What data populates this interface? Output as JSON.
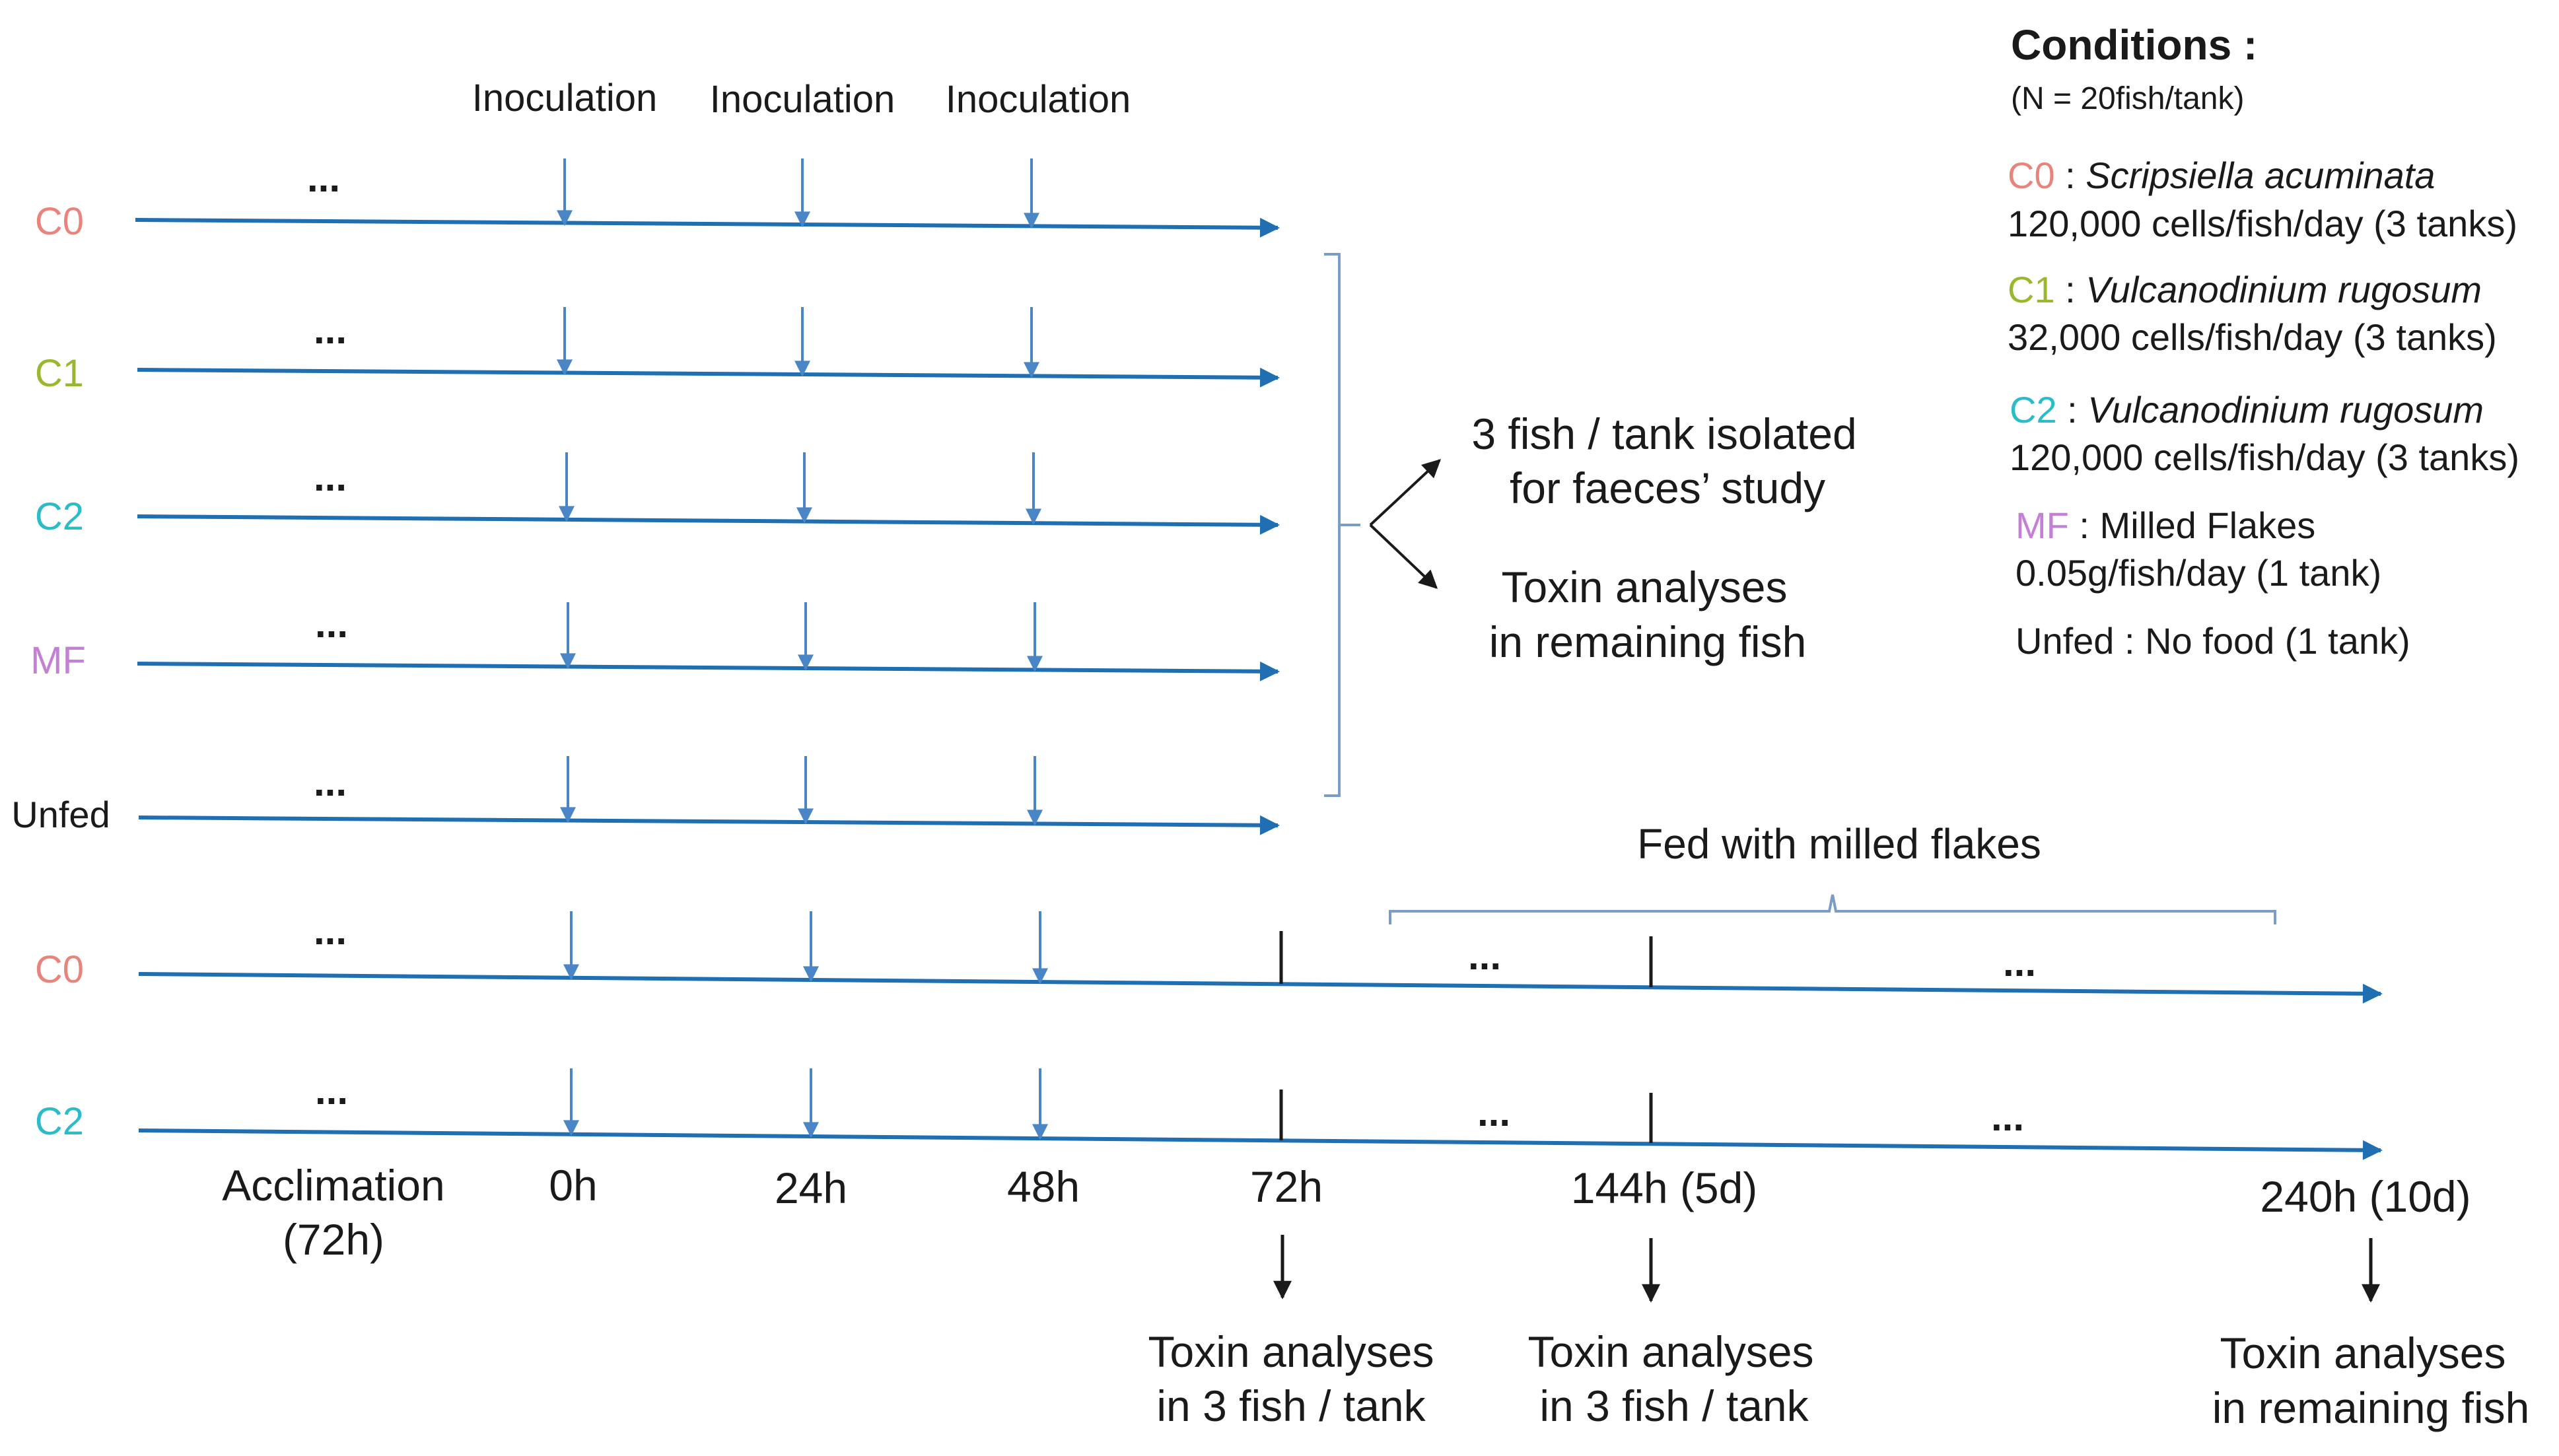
{
  "colors": {
    "timeline": "#1f6fb2",
    "inoculation_arrow": "#4a86c6",
    "bracket": "#7a9cc6",
    "c0": "#e8847c",
    "c1": "#9ab82e",
    "c2": "#2bbcc8",
    "mf": "#c47fd6",
    "text": "#1a1a1a"
  },
  "inoculation_labels": [
    "Inoculation",
    "Inoculation",
    "Inoculation"
  ],
  "rows": [
    {
      "label": "C0",
      "color_key": "c0",
      "dots": "..."
    },
    {
      "label": "C1",
      "color_key": "c1",
      "dots": "..."
    },
    {
      "label": "C2",
      "color_key": "c2",
      "dots": "..."
    },
    {
      "label": "MF",
      "color_key": "mf",
      "dots": "..."
    },
    {
      "label": "Unfed",
      "color_key": "text",
      "dots": "..."
    },
    {
      "label": "C0",
      "color_key": "c0",
      "dots": "..."
    },
    {
      "label": "C2",
      "color_key": "c2",
      "dots": "..."
    }
  ],
  "long_row_dots": [
    "...",
    "...",
    "...",
    "..."
  ],
  "outcome": {
    "branch1_line1": "3 fish / tank isolated",
    "branch1_line2": "for faeces’ study",
    "branch2_line1": "Toxin analyses",
    "branch2_line2": "in remaining fish"
  },
  "fed_label": "Fed with milled flakes",
  "time_axis": {
    "acclimation_line1": "Acclimation",
    "acclimation_line2": "(72h)",
    "t0": "0h",
    "t24": "24h",
    "t48": "48h",
    "t72": "72h",
    "t144": "144h (5d)",
    "t240": "240h (10d)"
  },
  "sampling": {
    "s72_line1": "Toxin analyses",
    "s72_line2": "in 3 fish / tank",
    "s144_line1": "Toxin analyses",
    "s144_line2": "in 3 fish / tank",
    "s240_line1": "Toxin analyses",
    "s240_line2": "in remaining fish"
  },
  "conditions": {
    "title": "Conditions :",
    "subtitle": "(N = 20fish/tank)",
    "c0_code": "C0",
    "c0_sep": " : ",
    "c0_species": "Scripsiella acuminata",
    "c0_dose": "120,000 cells/fish/day (3 tanks)",
    "c1_code": "C1",
    "c1_sep": " : ",
    "c1_species": "Vulcanodinium rugosum",
    "c1_dose": "32,000 cells/fish/day (3 tanks)",
    "c2_code": "C2",
    "c2_sep": " : ",
    "c2_species": "Vulcanodinium rugosum",
    "c2_dose": "120,000 cells/fish/day (3 tanks)",
    "mf_code": "MF",
    "mf_sep": " : ",
    "mf_name": "Milled Flakes",
    "mf_dose": "0.05g/fish/day (1 tank)",
    "unfed": "Unfed : No food (1 tank)"
  }
}
